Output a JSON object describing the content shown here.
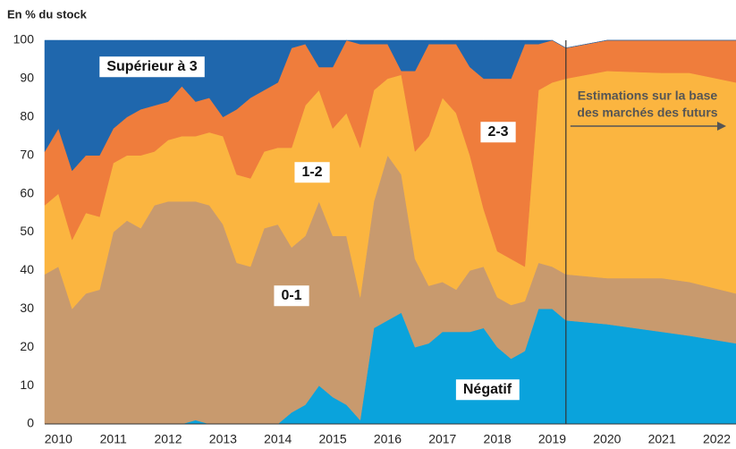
{
  "chart_data": {
    "type": "stacked_area",
    "y_axis_title": "En % du stock",
    "x": [
      2009.75,
      2010,
      2010.25,
      2010.5,
      2010.75,
      2011,
      2011.25,
      2011.5,
      2011.75,
      2012,
      2012.25,
      2012.5,
      2012.75,
      2013,
      2013.25,
      2013.5,
      2013.75,
      2014,
      2014.25,
      2014.5,
      2014.75,
      2015,
      2015.25,
      2015.5,
      2015.75,
      2016,
      2016.25,
      2016.5,
      2016.75,
      2017,
      2017.25,
      2017.5,
      2017.75,
      2018,
      2018.25,
      2018.5,
      2018.75,
      2019,
      2019.25,
      2020,
      2021,
      2021.5,
      2022.35
    ],
    "series": [
      {
        "name": "Négatif",
        "color": "#0aa3dc",
        "values": [
          0,
          0,
          0,
          0,
          0,
          0,
          0,
          0,
          0,
          0,
          0,
          1,
          0,
          0,
          0,
          0,
          0,
          0,
          3,
          5,
          10,
          7,
          5,
          1,
          25,
          27,
          29,
          20,
          21,
          24,
          24,
          24,
          25,
          20,
          17,
          19,
          30,
          30,
          27,
          26,
          24,
          23,
          21
        ]
      },
      {
        "name": "0-1",
        "color": "#c89a6e",
        "values": [
          39,
          41,
          30,
          34,
          35,
          50,
          53,
          51,
          57,
          58,
          58,
          57,
          57,
          52,
          42,
          41,
          51,
          52,
          43,
          44,
          48,
          42,
          44,
          32,
          33,
          43,
          36,
          23,
          15,
          13,
          11,
          16,
          16,
          13,
          14,
          13,
          12,
          11,
          12,
          12,
          14,
          14,
          13
        ]
      },
      {
        "name": "1-2",
        "color": "#fbb540",
        "values": [
          18,
          19,
          18,
          21,
          19,
          18,
          17,
          19,
          14,
          16,
          17,
          17,
          19,
          23,
          23,
          23,
          20,
          20,
          26,
          34,
          29,
          28,
          32,
          39,
          29,
          20,
          26,
          28,
          39,
          48,
          46,
          30,
          15,
          12,
          12,
          9,
          45,
          48,
          51,
          54,
          53.5,
          54.5,
          55
        ]
      },
      {
        "name": "2-3",
        "color": "#ef7d3c",
        "values": [
          14,
          17,
          18,
          15,
          16,
          9,
          10,
          12,
          12,
          10,
          13,
          9,
          9,
          5,
          17,
          21,
          16,
          17,
          26,
          16,
          6,
          16,
          19,
          27,
          12,
          9,
          1,
          21,
          24,
          14,
          18,
          23,
          34,
          45,
          47,
          58,
          12,
          11,
          8,
          8,
          8.5,
          8.5,
          11
        ]
      },
      {
        "name": "Supérieur à 3",
        "color": "#1f67ad",
        "values": [
          29,
          23,
          34,
          30,
          30,
          23,
          20,
          18,
          17,
          16,
          12,
          16,
          15,
          20,
          18,
          15,
          13,
          11,
          2,
          1,
          7,
          7,
          0,
          1,
          1,
          1,
          8,
          8,
          1,
          1,
          1,
          7,
          10,
          10,
          10,
          1,
          1,
          0,
          0,
          0,
          0,
          0,
          0
        ]
      }
    ],
    "xlim": [
      2009.75,
      2022.35
    ],
    "xticks": [
      2010,
      2011,
      2012,
      2013,
      2014,
      2015,
      2016,
      2017,
      2018,
      2019,
      2020,
      2021,
      2022
    ],
    "ylim": [
      0,
      100
    ],
    "yticks": [
      0,
      10,
      20,
      30,
      40,
      50,
      60,
      70,
      80,
      90,
      100
    ],
    "annotation": {
      "lines": [
        "Estimations sur la base",
        "des marchés des futurs"
      ],
      "x": 2019.25
    }
  }
}
